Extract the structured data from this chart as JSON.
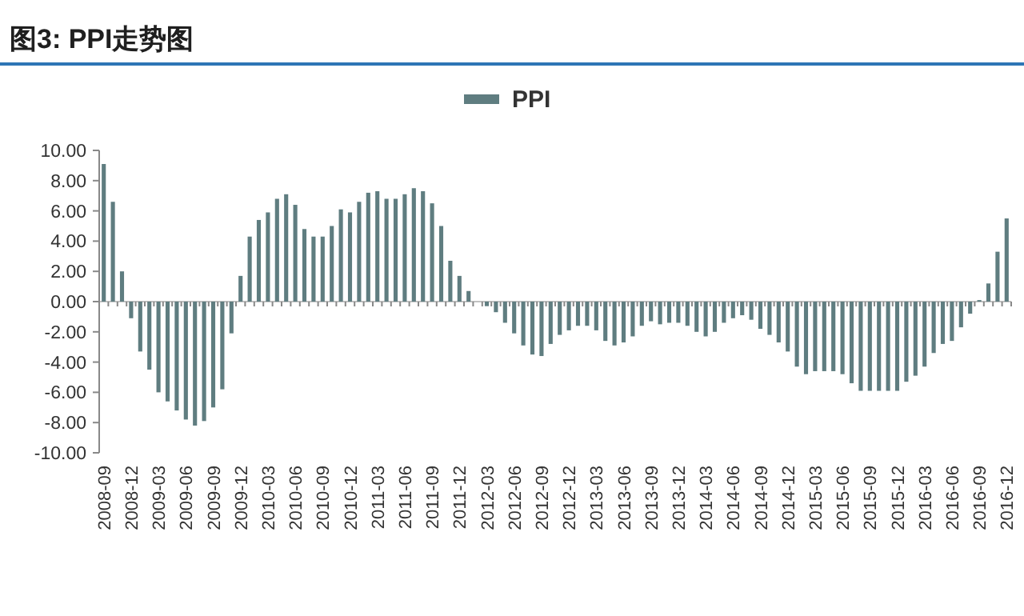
{
  "chart_data": {
    "type": "bar",
    "title": "图3: PPI走势图",
    "categories": [
      "2008-09",
      null,
      null,
      "2008-12",
      null,
      null,
      "2009-03",
      null,
      null,
      "2009-06",
      null,
      null,
      "2009-09",
      null,
      null,
      "2009-12",
      null,
      null,
      "2010-03",
      null,
      null,
      "2010-06",
      null,
      null,
      "2010-09",
      null,
      null,
      "2010-12",
      null,
      null,
      "2011-03",
      null,
      null,
      "2011-06",
      null,
      null,
      "2011-09",
      null,
      null,
      "2011-12",
      null,
      null,
      "2012-03",
      null,
      null,
      "2012-06",
      null,
      null,
      "2012-09",
      null,
      null,
      "2012-12",
      null,
      null,
      "2013-03",
      null,
      null,
      "2013-06",
      null,
      null,
      "2013-09",
      null,
      null,
      "2013-12",
      null,
      null,
      "2014-03",
      null,
      null,
      "2014-06",
      null,
      null,
      "2014-09",
      null,
      null,
      "2014-12",
      null,
      null,
      "2015-03",
      null,
      null,
      "2015-06",
      null,
      null,
      "2015-09",
      null,
      null,
      "2015-12",
      null,
      null,
      "2016-03",
      null,
      null,
      "2016-06",
      null,
      null,
      "2016-09",
      null,
      null,
      "2016-12"
    ],
    "series": [
      {
        "name": "PPI",
        "color": "#5f7d80",
        "values": [
          9.1,
          6.6,
          2.0,
          -1.1,
          -3.3,
          -4.5,
          -6.0,
          -6.6,
          -7.2,
          -7.8,
          -8.2,
          -7.9,
          -7.0,
          -5.8,
          -2.1,
          1.7,
          4.3,
          5.4,
          5.9,
          6.8,
          7.1,
          6.4,
          4.8,
          4.3,
          4.3,
          5.0,
          6.1,
          5.9,
          6.6,
          7.2,
          7.3,
          6.8,
          6.8,
          7.1,
          7.5,
          7.3,
          6.5,
          5.0,
          2.7,
          1.7,
          0.7,
          0.0,
          -0.3,
          -0.7,
          -1.4,
          -2.1,
          -2.9,
          -3.5,
          -3.6,
          -2.8,
          -2.2,
          -1.9,
          -1.6,
          -1.6,
          -1.9,
          -2.6,
          -2.9,
          -2.7,
          -2.3,
          -1.6,
          -1.3,
          -1.5,
          -1.4,
          -1.4,
          -1.6,
          -2.0,
          -2.3,
          -2.0,
          -1.4,
          -1.1,
          -0.9,
          -1.2,
          -1.8,
          -2.2,
          -2.7,
          -3.3,
          -4.3,
          -4.8,
          -4.6,
          -4.6,
          -4.6,
          -4.8,
          -5.4,
          -5.9,
          -5.9,
          -5.9,
          -5.9,
          -5.9,
          -5.3,
          -4.9,
          -4.3,
          -3.4,
          -2.8,
          -2.6,
          -1.7,
          -0.8,
          0.1,
          1.2,
          3.3,
          5.5
        ]
      }
    ],
    "ylim": [
      -10,
      10
    ],
    "yticks": [
      {
        "value": -10,
        "label": "-10.00"
      },
      {
        "value": -8,
        "label": "-8.00"
      },
      {
        "value": -6,
        "label": "-6.00"
      },
      {
        "value": -4,
        "label": "-4.00"
      },
      {
        "value": -2,
        "label": "-2.00"
      },
      {
        "value": 0,
        "label": "0.00"
      },
      {
        "value": 2,
        "label": "2.00"
      },
      {
        "value": 4,
        "label": "4.00"
      },
      {
        "value": 6,
        "label": "6.00"
      },
      {
        "value": 8,
        "label": "8.00"
      },
      {
        "value": 10,
        "label": "10.00"
      }
    ],
    "legend": "top"
  }
}
